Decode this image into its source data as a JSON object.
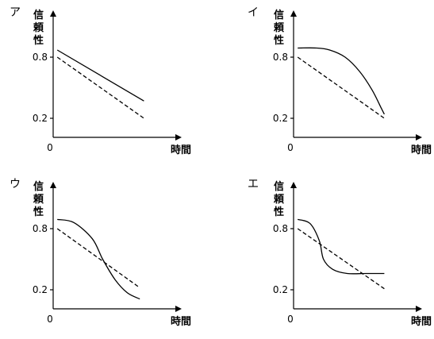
{
  "chart_data": [
    {
      "type": "line",
      "panel_label": "ア",
      "ylabel": "信頼性",
      "xlabel": "時間",
      "origin_label": "0",
      "yticks": [
        "0.8",
        "0.2"
      ],
      "series": [
        {
          "style": "solid",
          "points": [
            [
              0.04,
              0.87
            ],
            [
              0.88,
              0.37
            ]
          ]
        },
        {
          "style": "dashed",
          "points": [
            [
              0.04,
              0.8
            ],
            [
              0.88,
              0.2
            ]
          ]
        }
      ]
    },
    {
      "type": "line",
      "panel_label": "イ",
      "ylabel": "信頼性",
      "xlabel": "時間",
      "origin_label": "0",
      "yticks": [
        "0.8",
        "0.2"
      ],
      "series": [
        {
          "style": "solid",
          "points": [
            [
              0.04,
              0.89
            ],
            [
              0.22,
              0.89
            ],
            [
              0.35,
              0.87
            ],
            [
              0.5,
              0.8
            ],
            [
              0.64,
              0.66
            ],
            [
              0.76,
              0.48
            ],
            [
              0.85,
              0.3
            ],
            [
              0.88,
              0.24
            ]
          ]
        },
        {
          "style": "dashed",
          "points": [
            [
              0.04,
              0.8
            ],
            [
              0.88,
              0.2
            ]
          ]
        }
      ]
    },
    {
      "type": "line",
      "panel_label": "ウ",
      "ylabel": "信頼性",
      "xlabel": "時間",
      "origin_label": "0",
      "yticks": [
        "0.8",
        "0.2"
      ],
      "series": [
        {
          "style": "solid",
          "points": [
            [
              0.04,
              0.89
            ],
            [
              0.2,
              0.86
            ],
            [
              0.38,
              0.7
            ],
            [
              0.48,
              0.5
            ],
            [
              0.6,
              0.3
            ],
            [
              0.72,
              0.17
            ],
            [
              0.84,
              0.11
            ]
          ]
        },
        {
          "style": "dashed",
          "points": [
            [
              0.04,
              0.8
            ],
            [
              0.84,
              0.22
            ]
          ]
        }
      ]
    },
    {
      "type": "line",
      "panel_label": "エ",
      "ylabel": "信頼性",
      "xlabel": "時間",
      "origin_label": "0",
      "yticks": [
        "0.8",
        "0.2"
      ],
      "series": [
        {
          "style": "solid",
          "points": [
            [
              0.04,
              0.89
            ],
            [
              0.16,
              0.85
            ],
            [
              0.25,
              0.68
            ],
            [
              0.29,
              0.5
            ],
            [
              0.38,
              0.4
            ],
            [
              0.52,
              0.36
            ],
            [
              0.7,
              0.36
            ],
            [
              0.88,
              0.36
            ]
          ]
        },
        {
          "style": "dashed",
          "points": [
            [
              0.04,
              0.8
            ],
            [
              0.88,
              0.21
            ]
          ]
        }
      ]
    }
  ]
}
